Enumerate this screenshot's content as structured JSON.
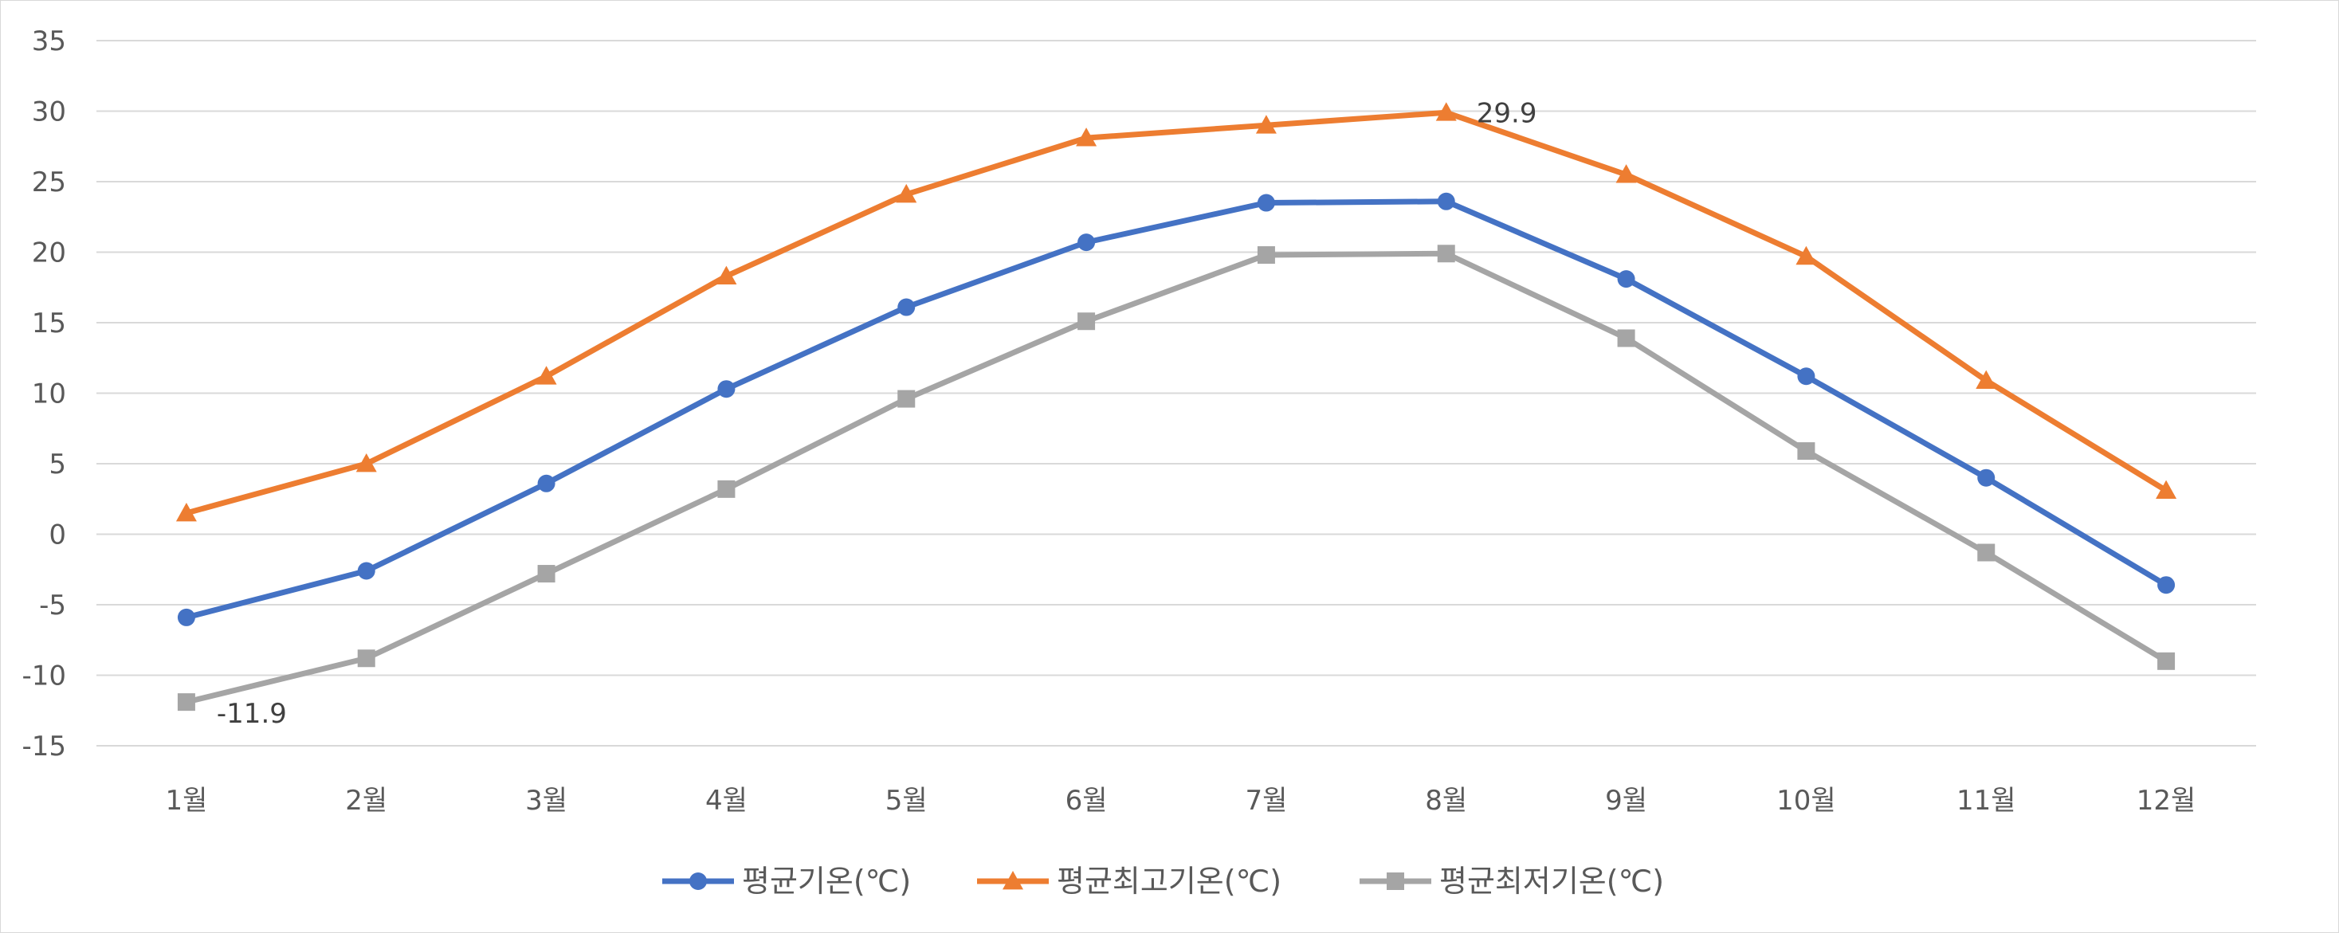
{
  "chart_data": {
    "type": "line",
    "title": "",
    "xlabel": "",
    "ylabel": "",
    "categories": [
      "1월",
      "2월",
      "3월",
      "4월",
      "5월",
      "6월",
      "7월",
      "8월",
      "9월",
      "10월",
      "11월",
      "12월"
    ],
    "ylim": [
      -15,
      35
    ],
    "yticks": [
      -15,
      -10,
      -5,
      0,
      5,
      10,
      15,
      20,
      25,
      30,
      35
    ],
    "ytick_labels": [
      "-15",
      "-10",
      "-5",
      "0",
      "5",
      "10",
      "15",
      "20",
      "25",
      "30",
      "35"
    ],
    "grid": true,
    "legend_position": "bottom",
    "series": [
      {
        "name": "평균기온(℃)",
        "color": "#4472C4",
        "marker": "circle",
        "values": [
          -5.9,
          -2.6,
          3.6,
          10.3,
          16.1,
          20.7,
          23.5,
          23.6,
          18.1,
          11.2,
          4.0,
          -3.6
        ]
      },
      {
        "name": "평균최고기온(℃)",
        "color": "#ED7D31",
        "marker": "triangle",
        "values": [
          1.5,
          5.0,
          11.2,
          18.3,
          24.1,
          28.1,
          29.0,
          29.9,
          25.5,
          19.7,
          10.9,
          3.1
        ]
      },
      {
        "name": "평균최저기온(℃)",
        "color": "#A5A5A5",
        "marker": "square",
        "values": [
          -11.9,
          -8.8,
          -2.8,
          3.2,
          9.6,
          15.1,
          19.8,
          19.9,
          13.9,
          5.9,
          -1.3,
          -9.0
        ]
      }
    ],
    "annotations": [
      {
        "series_index": 1,
        "point_index": 7,
        "text": "29.9",
        "placement": "right"
      },
      {
        "series_index": 2,
        "point_index": 0,
        "text": "-11.9",
        "placement": "right-below"
      }
    ]
  }
}
